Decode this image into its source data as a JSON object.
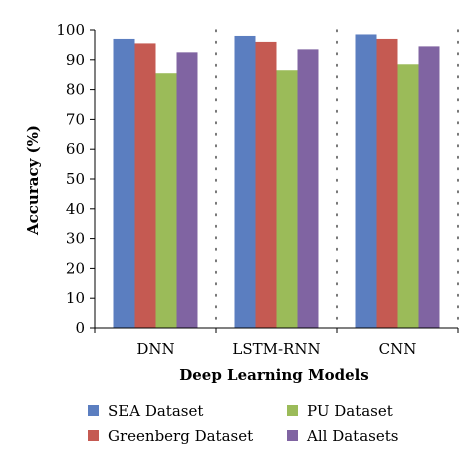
{
  "chart_data": {
    "type": "bar",
    "categories": [
      "DNN",
      "LSTM-RNN",
      "CNN"
    ],
    "series": [
      {
        "name": "SEA Dataset",
        "color": "#5B7EC0",
        "values": [
          97,
          98,
          98.5
        ]
      },
      {
        "name": "Greenberg Dataset",
        "color": "#C55A52",
        "values": [
          95.5,
          96,
          97
        ]
      },
      {
        "name": "PU Dataset",
        "color": "#9BBB59",
        "values": [
          85.5,
          86.5,
          88.5
        ]
      },
      {
        "name": "All Datasets",
        "color": "#8064A2",
        "values": [
          92.5,
          93.5,
          94.5
        ]
      }
    ],
    "xlabel": "Deep Learning Models",
    "ylabel": "Accuracy (%)",
    "ylim": [
      0,
      100
    ],
    "yticks": [
      0,
      10,
      20,
      30,
      40,
      50,
      60,
      70,
      80,
      90,
      100
    ],
    "ytick_labels": [
      "0",
      "10",
      "20",
      "30",
      "40",
      "50",
      "60",
      "70",
      "80",
      "90",
      "100"
    ],
    "grid": "dotted-vertical",
    "legend_position": "bottom"
  }
}
